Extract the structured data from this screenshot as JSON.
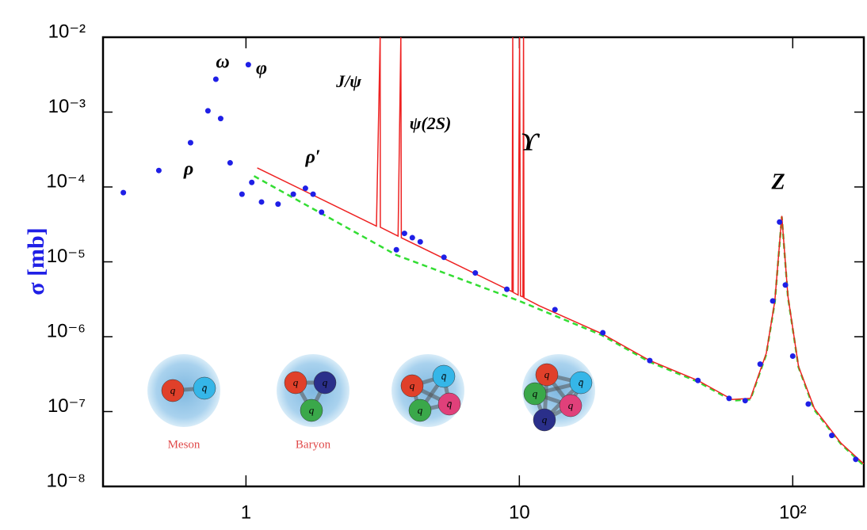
{
  "chart_data": {
    "type": "scatter",
    "ylabel": "σ [mb]",
    "xscale": "log",
    "yscale": "log",
    "xlim": [
      0.3,
      182
    ],
    "ylim": [
      1e-08,
      0.01
    ],
    "xticks": [
      1,
      10,
      {
        "value": 100,
        "label": "10²"
      }
    ],
    "yticks": [
      {
        "value": 1e-08,
        "label": "10⁻⁸"
      },
      {
        "value": 1e-07,
        "label": "10⁻⁷"
      },
      {
        "value": 1e-06,
        "label": "10⁻⁶"
      },
      {
        "value": 1e-05,
        "label": "10⁻⁵"
      },
      {
        "value": 0.0001,
        "label": "10⁻⁴"
      },
      {
        "value": 0.001,
        "label": "10⁻³"
      },
      {
        "value": 0.01,
        "label": "10⁻²"
      }
    ],
    "series": [
      {
        "type": "scatter",
        "color": "#1f1fe6",
        "x": [
          0.356,
          0.48,
          0.627,
          0.726,
          0.776,
          0.808,
          0.875,
          0.967,
          1.02,
          1.05,
          1.14,
          1.31,
          1.49,
          1.65,
          1.76,
          1.89,
          3.55,
          3.8,
          4.06,
          4.34,
          5.3,
          6.9,
          9.0,
          13.5,
          20.2,
          30,
          45,
          58.5,
          67,
          76,
          84.5,
          89.5,
          94,
          100,
          114,
          139,
          170
        ],
        "values": [
          8.4e-05,
          0.000166,
          0.00039,
          0.00104,
          0.00275,
          0.00082,
          0.00021,
          8e-05,
          0.0043,
          0.000115,
          6.3e-05,
          5.9e-05,
          8e-05,
          9.6e-05,
          8e-05,
          4.6e-05,
          1.45e-05,
          2.4e-05,
          2.1e-05,
          1.85e-05,
          1.15e-05,
          7.1e-06,
          4.3e-06,
          2.3e-06,
          1.13e-06,
          4.8e-07,
          2.6e-07,
          1.5e-07,
          1.4e-07,
          4.3e-07,
          3e-06,
          3.4e-05,
          4.9e-06,
          5.5e-07,
          1.26e-07,
          4.8e-08,
          2.3e-08
        ]
      },
      {
        "type": "line",
        "color": "#ee2222",
        "x": [
          1.1,
          3.0,
          3.097,
          3.1,
          3.6,
          3.686,
          3.7,
          9.4,
          9.46,
          9.5,
          9.9,
          10.02,
          10.1,
          10.3,
          10.36,
          10.4,
          11.8,
          20,
          30,
          45,
          60,
          70,
          80,
          86,
          91.2,
          96,
          105,
          120,
          150,
          182
        ],
        "values": [
          0.00018,
          3e-05,
          0.01,
          2.9e-05,
          2.2e-05,
          0.01,
          2.1e-05,
          4e-06,
          0.01,
          3.9e-06,
          3.6e-06,
          0.01,
          3.5e-06,
          3.4e-06,
          0.01,
          3.3e-06,
          2.6e-06,
          1.1e-06,
          4.8e-07,
          2.6e-07,
          1.45e-07,
          1.5e-07,
          6e-07,
          3e-06,
          4.1e-05,
          3.5e-06,
          4e-07,
          1.1e-07,
          3.8e-08,
          2e-08
        ]
      },
      {
        "type": "dashed-line",
        "color": "#33dd33",
        "x": [
          1.07,
          3.55,
          10,
          20,
          30,
          45,
          60,
          70,
          80,
          86,
          91.2,
          96,
          105,
          120,
          150,
          182
        ],
        "values": [
          0.00014,
          1.23e-05,
          3e-06,
          1.05e-06,
          4.6e-07,
          2.5e-07,
          1.4e-07,
          1.45e-07,
          5.8e-07,
          2.9e-06,
          4e-05,
          3.4e-06,
          3.9e-07,
          1.05e-07,
          3.7e-08,
          1.9e-08
        ]
      }
    ],
    "annotations": [
      "ω",
      "φ",
      "ρ",
      "ρ′",
      "J/ψ",
      "ψ(2S)",
      "ϒ",
      "Z"
    ],
    "hadrons": [
      {
        "label": "Meson",
        "quarks": [
          "q",
          "q̄"
        ]
      },
      {
        "label": "Baryon",
        "quarks": [
          "q",
          "q",
          "q"
        ]
      },
      {
        "quarks": [
          "q",
          "q̄",
          "q",
          "q̄"
        ]
      },
      {
        "quarks": [
          "q",
          "q̄",
          "q",
          "q",
          "q"
        ]
      }
    ]
  }
}
